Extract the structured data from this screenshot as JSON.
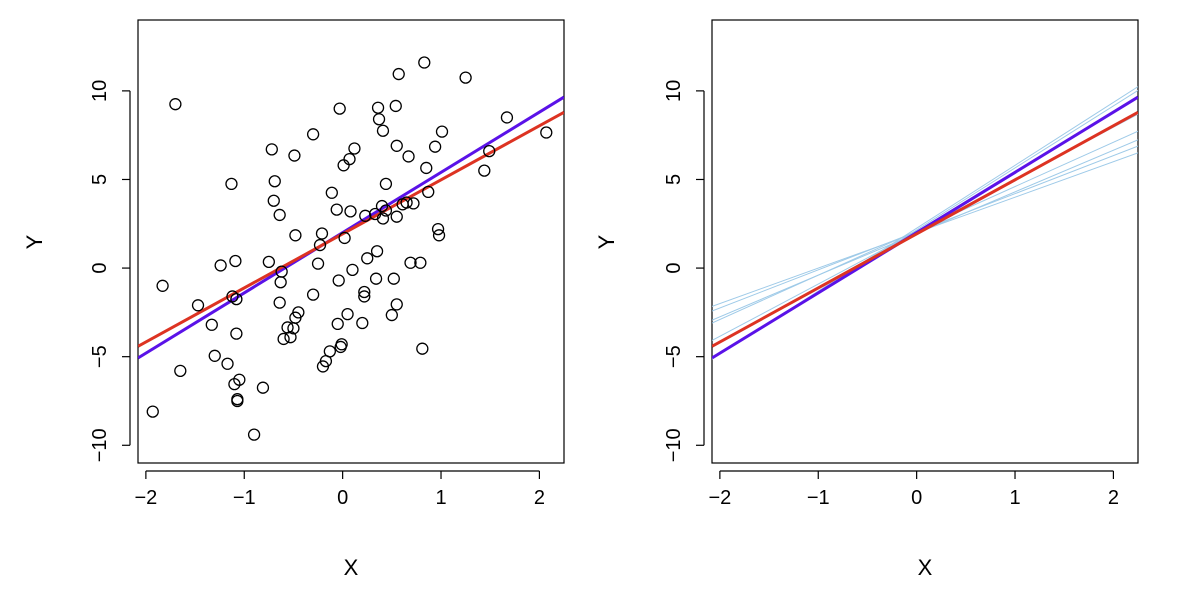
{
  "chart_data": [
    {
      "type": "scatter",
      "title": "",
      "xlabel": "X",
      "ylabel": "Y",
      "xlim": [
        -2.08,
        2.25
      ],
      "ylim": [
        -11.0,
        14.0
      ],
      "xticks": [
        "−2",
        "−1",
        "0",
        "1",
        "2"
      ],
      "yticks": [
        "−10",
        "−5",
        "0",
        "5",
        "10"
      ],
      "xtick_values": [
        -2,
        -1,
        0,
        1,
        2
      ],
      "ytick_values": [
        -10,
        -5,
        0,
        5,
        10
      ],
      "grid": false,
      "points": [
        [
          -1.93,
          -8.1
        ],
        [
          -1.83,
          -1.0
        ],
        [
          -1.7,
          9.25
        ],
        [
          -1.65,
          -5.8
        ],
        [
          -1.47,
          -2.1
        ],
        [
          -1.33,
          -3.2
        ],
        [
          -1.3,
          -4.95
        ],
        [
          -1.24,
          0.15
        ],
        [
          -1.17,
          -5.4
        ],
        [
          -1.13,
          4.75
        ],
        [
          -1.12,
          -1.6
        ],
        [
          -1.1,
          -6.55
        ],
        [
          -1.09,
          0.4
        ],
        [
          -1.08,
          -1.75
        ],
        [
          -1.08,
          -3.7
        ],
        [
          -1.07,
          -7.4
        ],
        [
          -1.07,
          -7.5
        ],
        [
          -1.05,
          -6.3
        ],
        [
          -0.9,
          -9.4
        ],
        [
          -0.81,
          -6.75
        ],
        [
          -0.75,
          0.35
        ],
        [
          -0.72,
          6.7
        ],
        [
          -0.7,
          3.8
        ],
        [
          -0.69,
          4.9
        ],
        [
          -0.64,
          3.0
        ],
        [
          -0.64,
          -1.95
        ],
        [
          -0.63,
          -0.8
        ],
        [
          -0.62,
          -0.2
        ],
        [
          -0.6,
          -4.0
        ],
        [
          -0.56,
          -3.35
        ],
        [
          -0.53,
          -3.9
        ],
        [
          -0.5,
          -3.4
        ],
        [
          -0.49,
          6.35
        ],
        [
          -0.48,
          1.85
        ],
        [
          -0.48,
          -2.8
        ],
        [
          -0.45,
          -2.5
        ],
        [
          -0.3,
          7.55
        ],
        [
          -0.3,
          -1.5
        ],
        [
          -0.25,
          0.25
        ],
        [
          -0.23,
          1.3
        ],
        [
          -0.21,
          1.95
        ],
        [
          -0.2,
          -5.55
        ],
        [
          -0.17,
          -5.25
        ],
        [
          -0.13,
          -4.7
        ],
        [
          -0.11,
          4.25
        ],
        [
          -0.06,
          3.3
        ],
        [
          -0.05,
          -3.15
        ],
        [
          -0.04,
          -0.7
        ],
        [
          -0.03,
          9.0
        ],
        [
          -0.02,
          -4.45
        ],
        [
          -0.01,
          -4.3
        ],
        [
          0.01,
          5.8
        ],
        [
          0.02,
          1.7
        ],
        [
          0.05,
          -2.6
        ],
        [
          0.07,
          6.15
        ],
        [
          0.08,
          3.2
        ],
        [
          0.1,
          -0.1
        ],
        [
          0.12,
          6.75
        ],
        [
          0.2,
          -3.1
        ],
        [
          0.22,
          -1.6
        ],
        [
          0.22,
          -1.35
        ],
        [
          0.23,
          2.95
        ],
        [
          0.25,
          0.55
        ],
        [
          0.33,
          3.05
        ],
        [
          0.34,
          -0.6
        ],
        [
          0.35,
          0.95
        ],
        [
          0.36,
          9.05
        ],
        [
          0.37,
          8.4
        ],
        [
          0.4,
          3.5
        ],
        [
          0.41,
          2.8
        ],
        [
          0.41,
          7.75
        ],
        [
          0.44,
          4.75
        ],
        [
          0.44,
          3.25
        ],
        [
          0.5,
          -2.65
        ],
        [
          0.52,
          -0.6
        ],
        [
          0.54,
          9.15
        ],
        [
          0.55,
          2.9
        ],
        [
          0.55,
          6.9
        ],
        [
          0.55,
          -2.05
        ],
        [
          0.57,
          10.95
        ],
        [
          0.61,
          3.6
        ],
        [
          0.65,
          3.7
        ],
        [
          0.67,
          6.3
        ],
        [
          0.69,
          0.3
        ],
        [
          0.72,
          3.65
        ],
        [
          0.79,
          0.3
        ],
        [
          0.81,
          -4.55
        ],
        [
          0.83,
          11.6
        ],
        [
          0.85,
          5.65
        ],
        [
          0.87,
          4.3
        ],
        [
          0.94,
          6.85
        ],
        [
          0.97,
          2.2
        ],
        [
          0.98,
          1.85
        ],
        [
          1.01,
          7.7
        ],
        [
          1.25,
          10.75
        ],
        [
          1.44,
          5.5
        ],
        [
          1.49,
          6.6
        ],
        [
          1.67,
          8.5
        ],
        [
          2.07,
          7.65
        ]
      ],
      "lines": [
        {
          "color": "#5a12e8",
          "intercept": 2.0,
          "slope": 3.4
        },
        {
          "color": "#dd3322",
          "intercept": 1.93,
          "slope": 3.05
        }
      ]
    },
    {
      "type": "line",
      "title": "",
      "xlabel": "X",
      "ylabel": "Y",
      "xlim": [
        -2.08,
        2.25
      ],
      "ylim": [
        -11.0,
        14.0
      ],
      "xticks": [
        "−2",
        "−1",
        "0",
        "1",
        "2"
      ],
      "yticks": [
        "−10",
        "−5",
        "0",
        "5",
        "10"
      ],
      "xtick_values": [
        -2,
        -1,
        0,
        1,
        2
      ],
      "ytick_values": [
        -10,
        -5,
        0,
        5,
        10
      ],
      "grid": false,
      "thin_lines": [
        {
          "color": "#9ecae8",
          "intercept": 2.0,
          "slope": 2.0
        },
        {
          "color": "#9ecae8",
          "intercept": 2.05,
          "slope": 2.15
        },
        {
          "color": "#9ecae8",
          "intercept": 1.95,
          "slope": 2.35
        },
        {
          "color": "#9ecae8",
          "intercept": 2.1,
          "slope": 2.5
        },
        {
          "color": "#9ecae8",
          "intercept": 2.05,
          "slope": 2.95
        },
        {
          "color": "#9ecae8",
          "intercept": 2.15,
          "slope": 3.5
        },
        {
          "color": "#9ecae8",
          "intercept": 2.25,
          "slope": 3.55
        }
      ],
      "lines": [
        {
          "color": "#5a12e8",
          "intercept": 2.0,
          "slope": 3.4
        },
        {
          "color": "#dd3322",
          "intercept": 1.93,
          "slope": 3.05
        }
      ]
    }
  ]
}
